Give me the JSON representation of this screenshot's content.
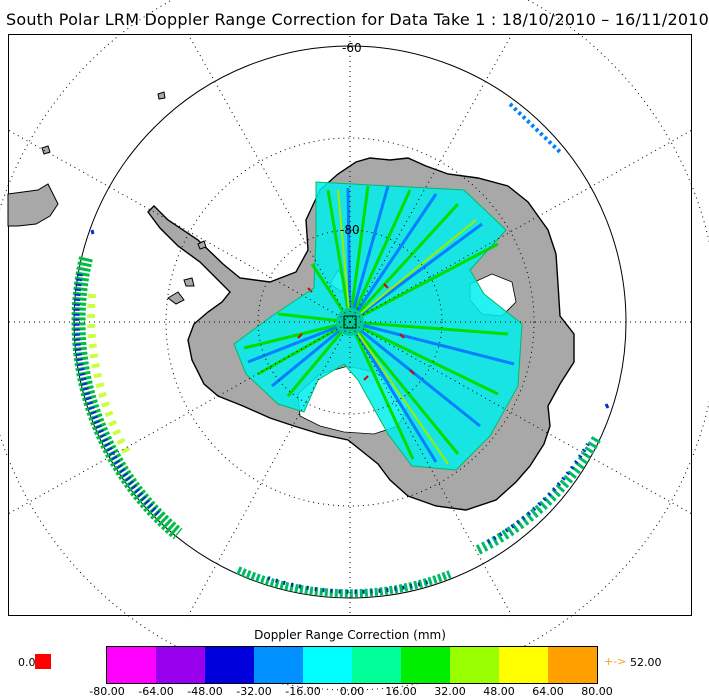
{
  "title": "South Polar LRM Doppler Range Correction for Data Take 1 : 18/10/2010 – 16/11/2010",
  "map": {
    "lat_labels": [
      "-60",
      "-80"
    ],
    "colors": {
      "frame": "#000000",
      "ocean": "#ffffff",
      "land": "#a8a8a8",
      "coast": "#000000",
      "grid": "#000000"
    }
  },
  "colorbar": {
    "title": "Doppler Range Correction (mm)",
    "min_value_label": "0.0",
    "min_color": "#ff0000",
    "max_marker": "+->",
    "max_value_label": "52.00",
    "max_marker_color": "#ffa020",
    "colors": [
      "#ff00ff",
      "#9900ee",
      "#0000dd",
      "#0090ff",
      "#00ffff",
      "#00ff99",
      "#00ee00",
      "#99ff00",
      "#ffff00",
      "#ffa000"
    ],
    "ticks": [
      "-80.00",
      "-64.00",
      "-48.00",
      "-32.00",
      "-16.00",
      "0.00",
      "16.00",
      "32.00",
      "48.00",
      "64.00",
      "80.00"
    ]
  }
}
